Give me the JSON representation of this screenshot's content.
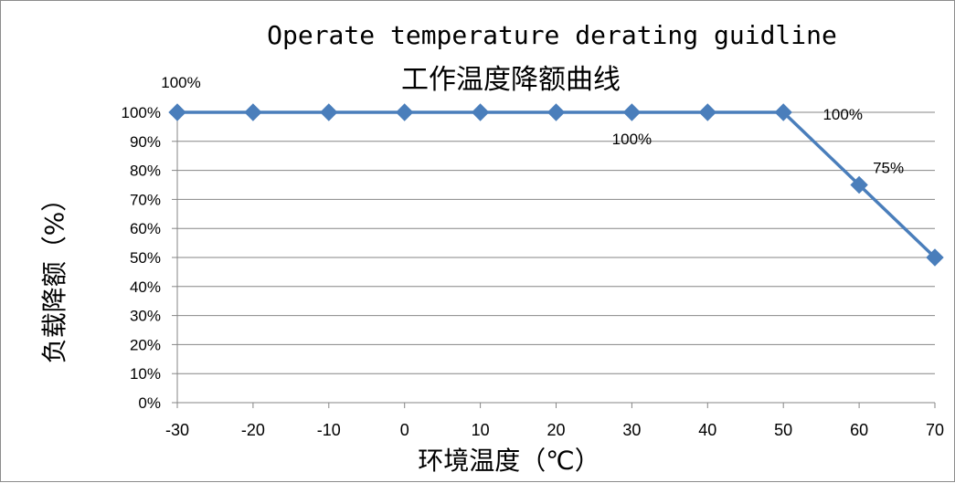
{
  "chart_data": {
    "type": "line",
    "title": "Operate temperature derating guidline",
    "subtitle": "工作温度降额曲线",
    "xlabel": "环境温度（℃）",
    "ylabel": "负载降额（%）",
    "x": [
      -30,
      -20,
      -10,
      0,
      10,
      20,
      30,
      40,
      50,
      60,
      70
    ],
    "x_tick_labels": [
      "-30",
      "-20",
      "-10",
      "0",
      "10",
      "20",
      "30",
      "40",
      "50",
      "60",
      "70"
    ],
    "y_tick_labels": [
      "0%",
      "10%",
      "20%",
      "30%",
      "40%",
      "50%",
      "60%",
      "70%",
      "80%",
      "90%",
      "100%"
    ],
    "ylim": [
      0,
      100
    ],
    "grid": true,
    "legend": "none",
    "series": [
      {
        "values": [
          100,
          100,
          100,
          100,
          100,
          100,
          100,
          100,
          100,
          75,
          50
        ],
        "color": "#4A7EBB",
        "marker": "diamond"
      }
    ],
    "annotations": [
      {
        "text": "100%",
        "x": -30,
        "y": 100
      },
      {
        "text": "100%",
        "x": 30,
        "y": 100
      },
      {
        "text": "100%",
        "x": 50,
        "y": 100
      },
      {
        "text": "75%",
        "x": 60,
        "y": 75
      }
    ]
  }
}
